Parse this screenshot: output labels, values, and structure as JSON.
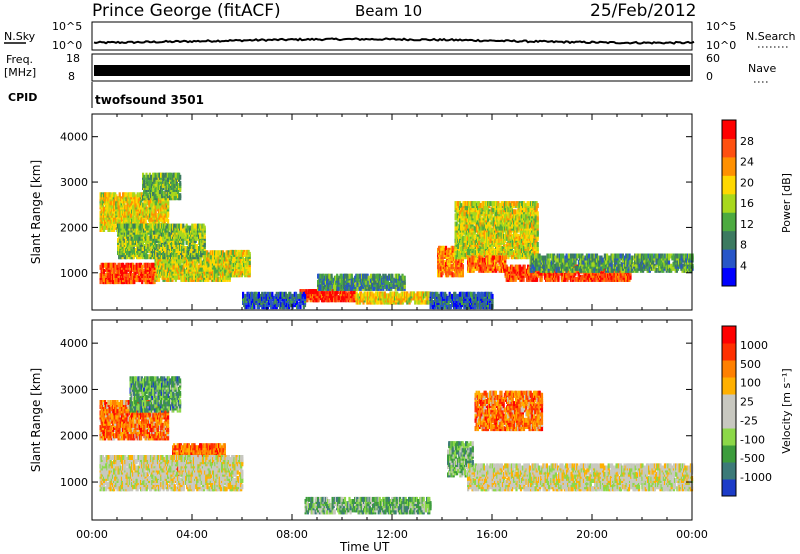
{
  "header": {
    "station": "Prince George (fitACF)",
    "beam": "Beam 10",
    "date": "25/Feb/2012"
  },
  "top_panels": {
    "nsky_label": "N.Sky",
    "nsky_ticks": [
      "10^5",
      "10^0"
    ],
    "nsearch_label": "N.Search",
    "nsearch_ticks": [
      "10^5",
      "10^0"
    ],
    "freq_label_1": "Freq.",
    "freq_label_2": "[MHz]",
    "freq_ticks": [
      "18",
      "8"
    ],
    "nave_label": "Nave",
    "nave_ticks": [
      "60",
      "0"
    ],
    "cpid_label": "CPID",
    "cpid_text": "twofsound 3501"
  },
  "chart_data": [
    {
      "type": "heatmap",
      "name": "power",
      "ylabel": "Slant Range [km]",
      "xlabel": "",
      "yticks": [
        "1000",
        "2000",
        "3000",
        "4000"
      ],
      "xticks": [
        "00:00",
        "04:00",
        "08:00",
        "12:00",
        "16:00",
        "20:00",
        "00:00"
      ],
      "xlim_hours": [
        0,
        24
      ],
      "ylim_km": [
        180,
        4500
      ],
      "colorbar_label": "Power [dB]",
      "colorbar_ticks": [
        "28",
        "24",
        "20",
        "16",
        "12",
        "8",
        "4"
      ],
      "colorbar_colors": [
        "#0000ff",
        "#2856c8",
        "#3c7a60",
        "#4caa40",
        "#a8d81c",
        "#ffd800",
        "#ff9000",
        "#ff5010",
        "#ff0000"
      ],
      "bands": [
        {
          "t0": 0.3,
          "t1": 2.5,
          "r0": 750,
          "r1": 1150,
          "level": 0.85
        },
        {
          "t0": 2.5,
          "t1": 5.5,
          "r0": 800,
          "r1": 1400,
          "level": 0.55
        },
        {
          "t0": 0.3,
          "t1": 3.0,
          "r0": 1900,
          "r1": 2700,
          "level": 0.6
        },
        {
          "t0": 1.0,
          "t1": 4.5,
          "r0": 1300,
          "r1": 2000,
          "level": 0.45
        },
        {
          "t0": 2.0,
          "t1": 3.5,
          "r0": 2600,
          "r1": 3100,
          "level": 0.4
        },
        {
          "t0": 5.5,
          "t1": 6.3,
          "r0": 900,
          "r1": 1400,
          "level": 0.55
        },
        {
          "t0": 8.3,
          "t1": 10.5,
          "r0": 350,
          "r1": 550,
          "level": 0.9
        },
        {
          "t0": 10.5,
          "t1": 13.5,
          "r0": 300,
          "r1": 500,
          "level": 0.6
        },
        {
          "t0": 9.0,
          "t1": 12.5,
          "r0": 600,
          "r1": 900,
          "level": 0.3
        },
        {
          "t0": 13.8,
          "t1": 14.8,
          "r0": 900,
          "r1": 1500,
          "level": 0.75
        },
        {
          "t0": 14.5,
          "t1": 17.8,
          "r0": 1300,
          "r1": 2500,
          "level": 0.55
        },
        {
          "t0": 15.0,
          "t1": 16.5,
          "r0": 1000,
          "r1": 1300,
          "level": 0.8
        },
        {
          "t0": 16.5,
          "t1": 21.5,
          "r0": 800,
          "r1": 1100,
          "level": 0.85
        },
        {
          "t0": 17.5,
          "t1": 24.0,
          "r0": 1000,
          "r1": 1350,
          "level": 0.35
        },
        {
          "t0": 6.0,
          "t1": 8.5,
          "r0": 200,
          "r1": 500,
          "level": 0.2
        },
        {
          "t0": 13.5,
          "t1": 16.0,
          "r0": 200,
          "r1": 500,
          "level": 0.2
        }
      ]
    },
    {
      "type": "heatmap",
      "name": "velocity",
      "ylabel": "Slant Range [km]",
      "xlabel": "Time UT",
      "yticks": [
        "1000",
        "2000",
        "3000",
        "4000"
      ],
      "xticks": [
        "00:00",
        "04:00",
        "08:00",
        "12:00",
        "16:00",
        "20:00",
        "00:00"
      ],
      "xlim_hours": [
        0,
        24
      ],
      "ylim_km": [
        180,
        4500
      ],
      "colorbar_label": "Velocity [m s⁻¹]",
      "colorbar_ticks": [
        "1000",
        "500",
        "100",
        "25",
        "-25",
        "-100",
        "-500",
        "-1000"
      ],
      "colorbar_colors": [
        "#1c3cc8",
        "#3c7a78",
        "#3c9c3c",
        "#8cd848",
        "#c8c8c0",
        "#c8c8c0",
        "#ffb000",
        "#ff8000",
        "#ff3000",
        "#ff0000"
      ],
      "bands": [
        {
          "t0": 0.3,
          "t1": 3.0,
          "r0": 1900,
          "r1": 2700,
          "level": 0.75
        },
        {
          "t0": 3.2,
          "t1": 5.3,
          "r0": 1100,
          "r1": 1750,
          "level": 0.78
        },
        {
          "t0": 0.3,
          "t1": 6.0,
          "r0": 800,
          "r1": 1500,
          "level": 0.5
        },
        {
          "t0": 8.5,
          "t1": 13.5,
          "r0": 300,
          "r1": 600,
          "level": 0.3
        },
        {
          "t0": 14.2,
          "t1": 15.2,
          "r0": 1100,
          "r1": 1800,
          "level": 0.3
        },
        {
          "t0": 15.3,
          "t1": 18.0,
          "r0": 2100,
          "r1": 2900,
          "level": 0.75
        },
        {
          "t0": 15.0,
          "t1": 24.0,
          "r0": 800,
          "r1": 1300,
          "level": 0.5
        },
        {
          "t0": 1.5,
          "t1": 3.5,
          "r0": 2500,
          "r1": 3200,
          "level": 0.25
        }
      ]
    }
  ]
}
